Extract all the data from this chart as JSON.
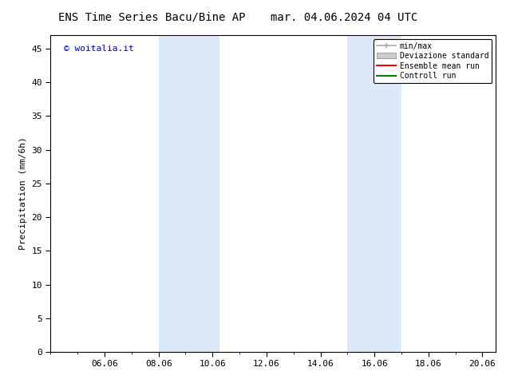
{
  "title_left": "ENS Time Series Bacu/Bine AP",
  "title_right": "mar. 04.06.2024 04 UTC",
  "ylabel": "Precipitation (mm/6h)",
  "watermark": "© woitalia.it",
  "watermark_color": "#0000cc",
  "xlim_start": 4.0,
  "xlim_end": 20.5,
  "ylim": [
    0,
    47
  ],
  "yticks": [
    0,
    5,
    10,
    15,
    20,
    25,
    30,
    35,
    40,
    45
  ],
  "xtick_labels": [
    "06.06",
    "08.06",
    "10.06",
    "12.06",
    "14.06",
    "16.06",
    "18.06",
    "20.06"
  ],
  "xtick_positions": [
    6,
    8,
    10,
    12,
    14,
    16,
    18,
    20
  ],
  "shaded_regions": [
    {
      "x_start": 8.0,
      "x_end": 10.25,
      "color": "#dce9f8"
    },
    {
      "x_start": 15.0,
      "x_end": 17.0,
      "color": "#dce9f8"
    }
  ],
  "legend_entries": [
    {
      "label": "min/max",
      "color": "#aaaaaa",
      "style": "minmax"
    },
    {
      "label": "Deviazione standard",
      "color": "#cccccc",
      "style": "std"
    },
    {
      "label": "Ensemble mean run",
      "color": "#ff0000",
      "style": "line"
    },
    {
      "label": "Controll run",
      "color": "#008000",
      "style": "line"
    }
  ],
  "background_color": "#ffffff",
  "plot_bg_color": "#ffffff",
  "title_fontsize": 10,
  "tick_fontsize": 8,
  "ylabel_fontsize": 8,
  "legend_fontsize": 7,
  "watermark_fontsize": 8
}
